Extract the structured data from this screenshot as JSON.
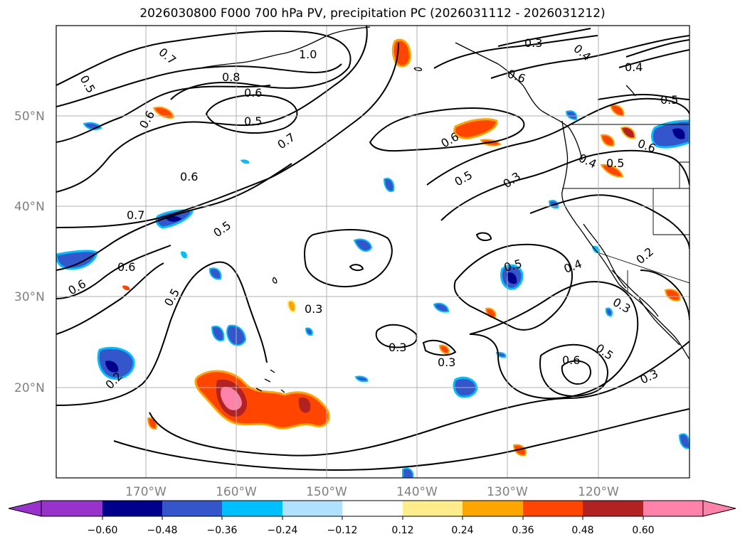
{
  "title": "2026030800 F000 700 hPa PV, precipitation PC (2026031112 - 2026031212)",
  "map": {
    "lat_labels": [
      "50°N",
      "40°N",
      "30°N",
      "20°N"
    ],
    "lon_labels": [
      "170°W",
      "160°W",
      "150°W",
      "140°W",
      "130°W",
      "120°W"
    ]
  },
  "contour_labels": [
    "0.5",
    "0.7",
    "0.6",
    "0.8",
    "1.0",
    "0.6",
    "0.5",
    "0.7",
    "0.6",
    "0.7",
    "0.6",
    "0.5",
    "0.6",
    "0.6",
    "0.5",
    "0.3",
    "0.3",
    "0.3",
    "0.2",
    "0.3",
    "0.4",
    "0.5",
    "0.3",
    "0.6",
    "0.4",
    "0.5",
    "0.4",
    "0.5",
    "0.6",
    "0.5",
    "0.4",
    "0.2",
    "0.3",
    "0.6",
    "0.5",
    "0.3"
  ],
  "colorbar": {
    "colors": [
      "#9932cc",
      "#00008b",
      "#3356cc",
      "#00bfff",
      "#b0e2ff",
      "#ffffff",
      "#ffec8b",
      "#ffa500",
      "#ff4500",
      "#b22222",
      "#ff82ab"
    ],
    "ticks": [
      "−0.60",
      "−0.48",
      "−0.36",
      "−0.24",
      "−0.12",
      "0.12",
      "0.24",
      "0.36",
      "0.48",
      "0.60"
    ]
  }
}
